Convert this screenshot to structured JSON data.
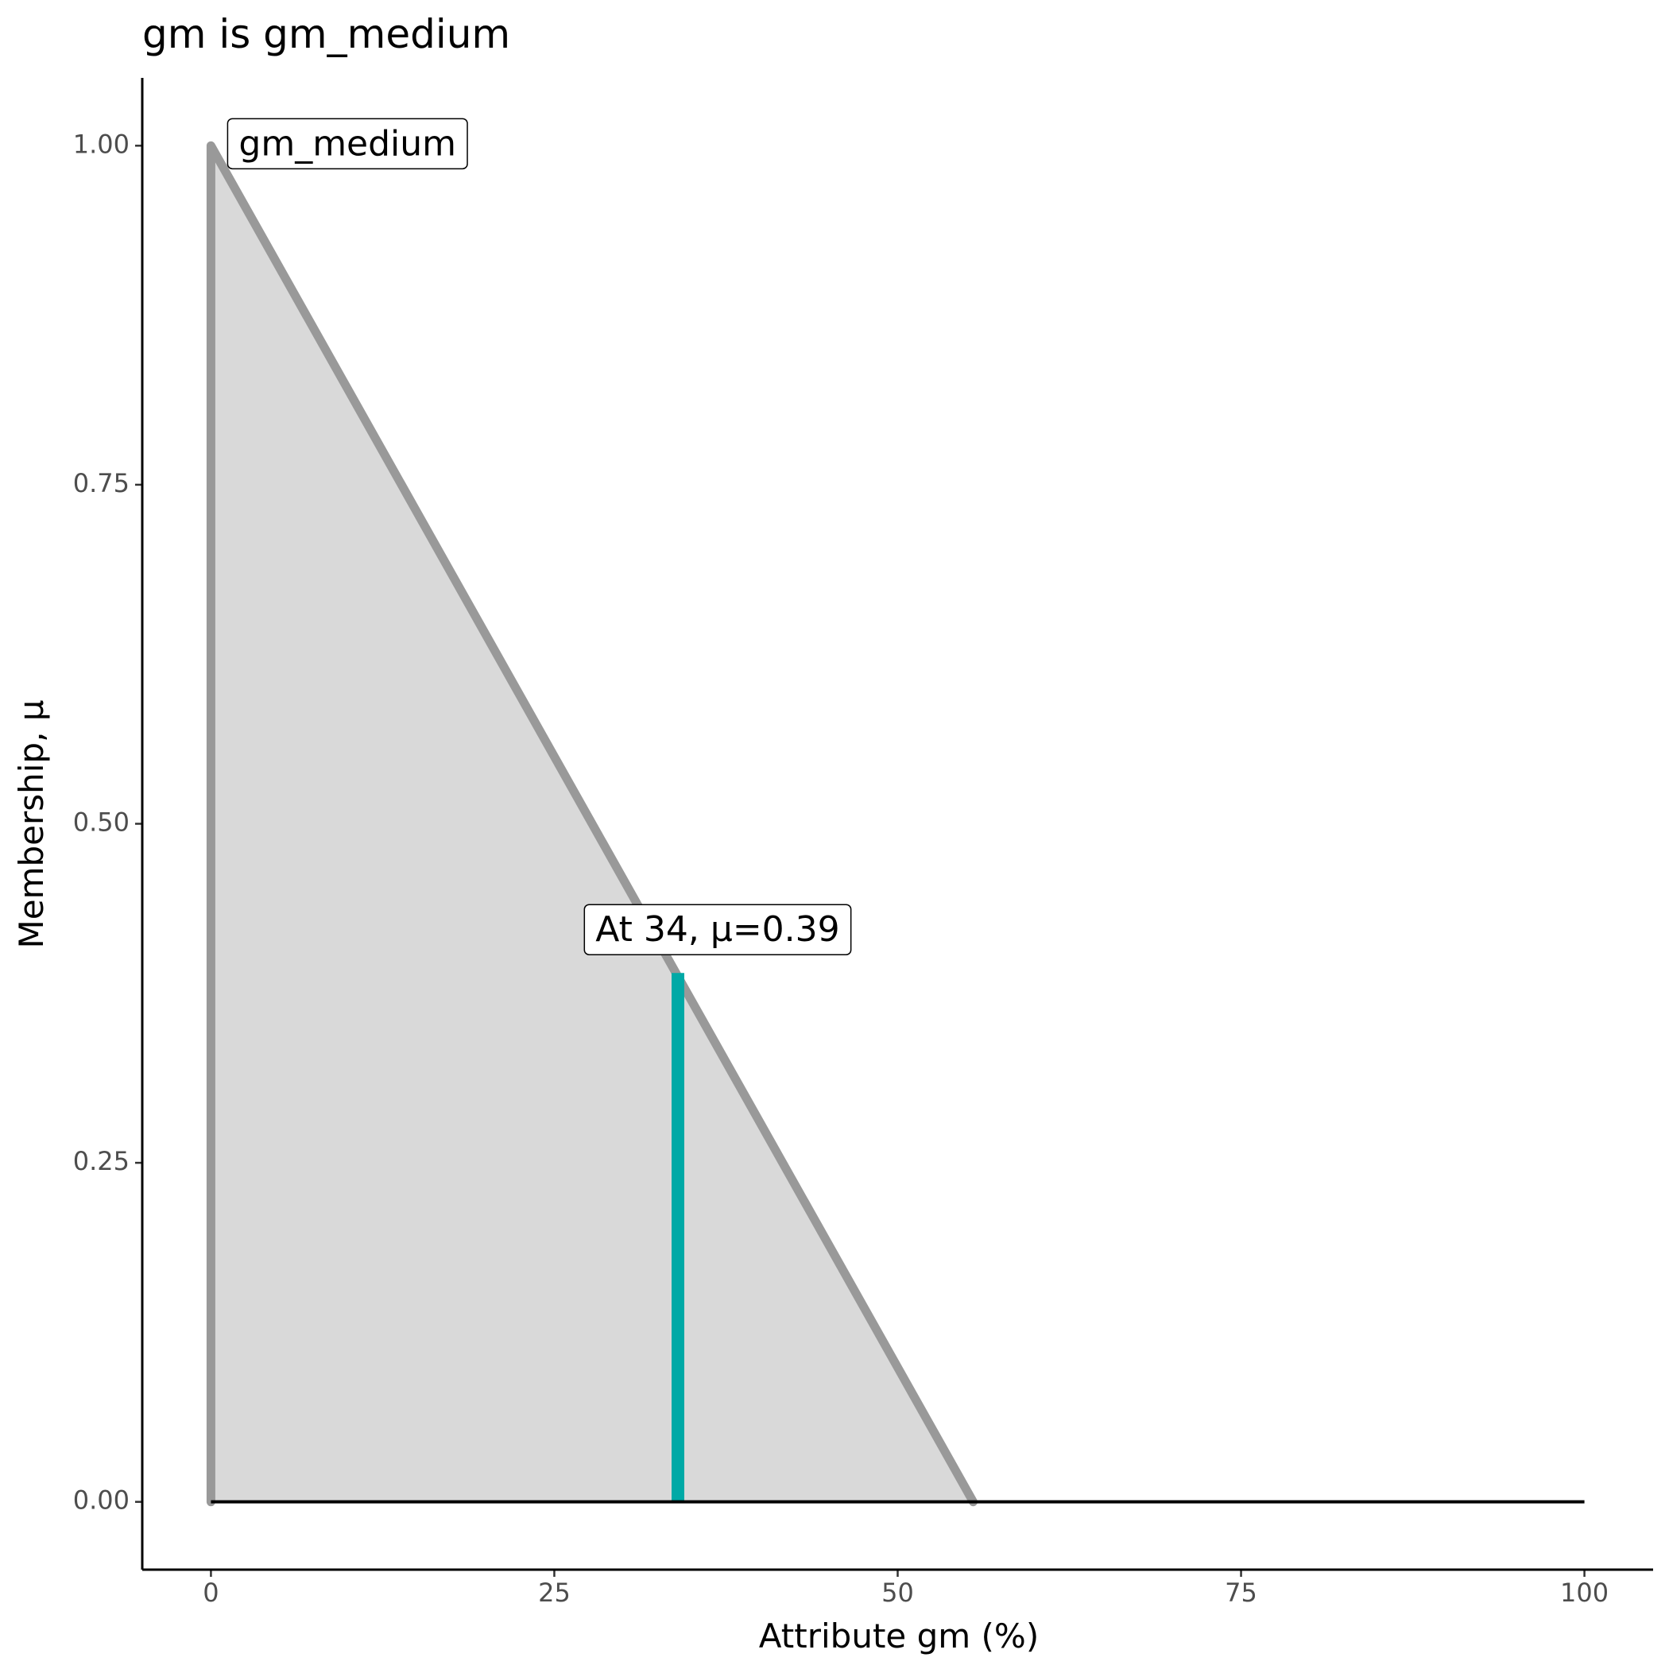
{
  "chart_data": {
    "type": "area",
    "title": "gm is gm_medium",
    "x_label": "Attribute gm (%)",
    "y_label": "Membership, μ",
    "x": [
      0,
      0,
      55.5
    ],
    "series": [
      {
        "name": "gm_medium",
        "color": "#999999",
        "fill": "#d9d9d9",
        "values": [
          0,
          1,
          0
        ]
      }
    ],
    "baseline": {
      "x": [
        0,
        100
      ],
      "values": [
        0,
        0
      ],
      "color": "#000000"
    },
    "marker": {
      "x": 34,
      "value": 0.39,
      "label": "At 34, μ=0.39",
      "color": "#00a9a6"
    },
    "xlim": [
      -5,
      105
    ],
    "ylim": [
      -0.05,
      1.05
    ],
    "xticks": [
      0,
      25,
      50,
      75,
      100
    ],
    "yticks": [
      {
        "value": 0,
        "label": "0.00"
      },
      {
        "value": 0.25,
        "label": "0.25"
      },
      {
        "value": 0.5,
        "label": "0.50"
      },
      {
        "value": 0.75,
        "label": "0.75"
      },
      {
        "value": 1,
        "label": "1.00"
      }
    ]
  }
}
